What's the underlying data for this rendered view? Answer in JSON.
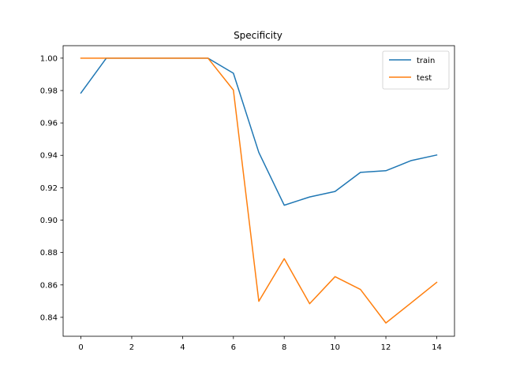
{
  "chart_data": {
    "type": "line",
    "title": "Specificity",
    "xlabel": "",
    "ylabel": "",
    "xlim": [
      -0.7,
      14.7
    ],
    "ylim": [
      0.8283,
      1.0077
    ],
    "xticks": [
      0,
      2,
      4,
      6,
      8,
      10,
      12,
      14
    ],
    "xtick_labels": [
      "0",
      "2",
      "4",
      "6",
      "8",
      "10",
      "12",
      "14"
    ],
    "yticks": [
      0.84,
      0.86,
      0.88,
      0.9,
      0.92,
      0.94,
      0.96,
      0.98,
      1.0
    ],
    "ytick_labels": [
      "0.84",
      "0.86",
      "0.88",
      "0.90",
      "0.92",
      "0.94",
      "0.96",
      "0.98",
      "1.00"
    ],
    "grid": false,
    "legend_position": "top-right",
    "x": [
      0,
      1,
      2,
      3,
      4,
      5,
      6,
      7,
      8,
      9,
      10,
      11,
      12,
      13,
      14
    ],
    "series": [
      {
        "name": "train",
        "color": "#1f77b4",
        "values": [
          0.9785,
          1.0,
          1.0,
          1.0,
          1.0,
          1.0,
          0.9907,
          0.9418,
          0.9092,
          0.9143,
          0.9177,
          0.9295,
          0.9305,
          0.9368,
          0.9402
        ]
      },
      {
        "name": "test",
        "color": "#ff7f0e",
        "values": [
          1.0,
          1.0,
          1.0,
          1.0,
          1.0,
          1.0,
          0.9803,
          0.8499,
          0.8762,
          0.8484,
          0.8651,
          0.8572,
          0.8365,
          0.849,
          0.8616
        ]
      }
    ]
  }
}
